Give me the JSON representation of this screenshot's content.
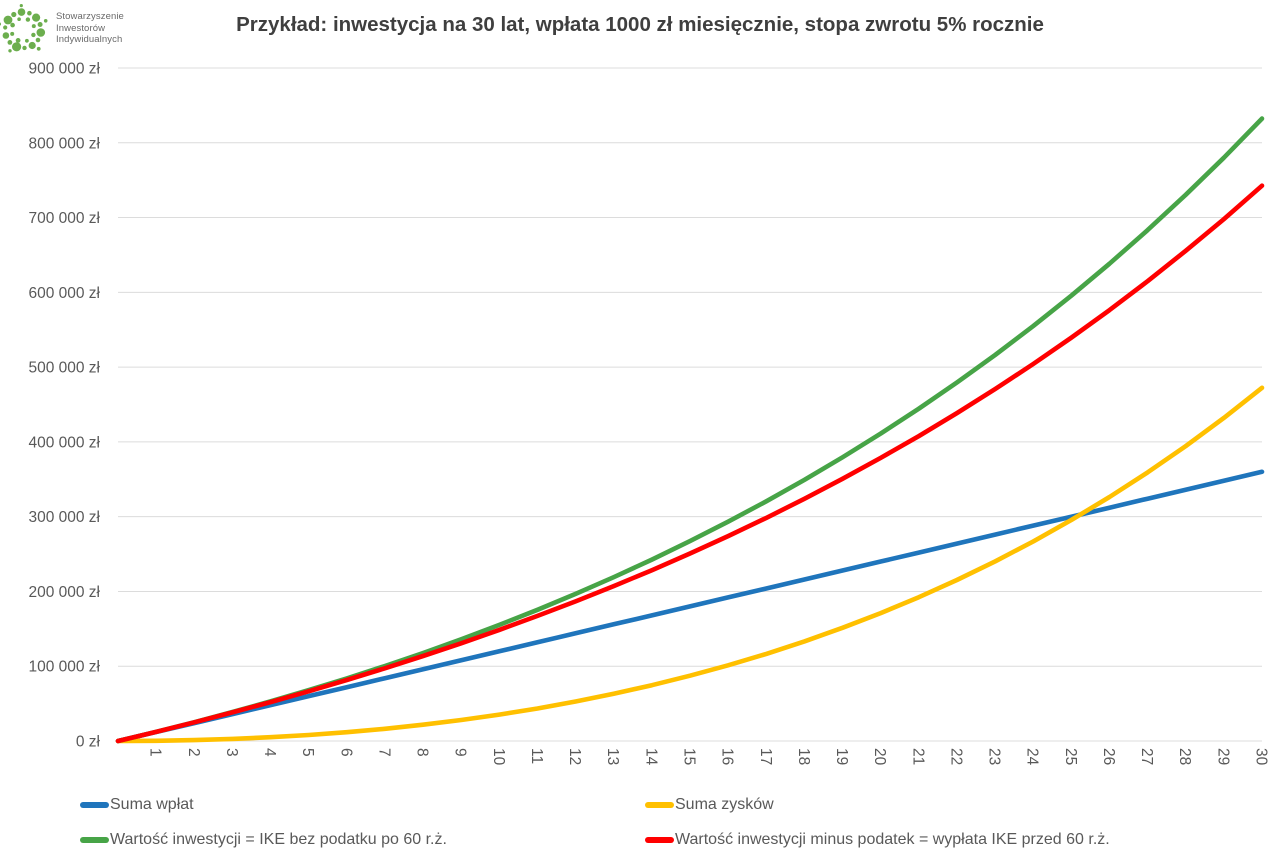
{
  "header": {
    "logo_lines": [
      "Stowarzyszenie",
      "Inwestorów",
      "Indywidualnych"
    ],
    "logo_color": "#6cae4e",
    "title": "Przykład: inwestycja na 30 lat, wpłata 1000 zł miesięcznie, stopa zwrotu 5% rocznie"
  },
  "chart_data": {
    "type": "line",
    "title": "Przykład: inwestycja na 30 lat, wpłata 1000 zł miesięcznie, stopa zwrotu 5% rocznie",
    "xlabel": "",
    "ylabel": "",
    "x_values": [
      0,
      1,
      2,
      3,
      4,
      5,
      6,
      7,
      8,
      9,
      10,
      11,
      12,
      13,
      14,
      15,
      16,
      17,
      18,
      19,
      20,
      21,
      22,
      23,
      24,
      25,
      26,
      27,
      28,
      29,
      30
    ],
    "x_tick_labels": [
      "1",
      "2",
      "3",
      "4",
      "5",
      "6",
      "7",
      "8",
      "9",
      "10",
      "11",
      "12",
      "13",
      "14",
      "15",
      "16",
      "17",
      "18",
      "19",
      "20",
      "21",
      "22",
      "23",
      "24",
      "25",
      "26",
      "27",
      "28",
      "29",
      "30"
    ],
    "ylim": [
      0,
      900000
    ],
    "y_ticks": [
      {
        "value": 0,
        "label": "0 zł"
      },
      {
        "value": 100000,
        "label": "100 000 zł"
      },
      {
        "value": 200000,
        "label": "200 000 zł"
      },
      {
        "value": 300000,
        "label": "300 000 zł"
      },
      {
        "value": 400000,
        "label": "400 000 zł"
      },
      {
        "value": 500000,
        "label": "500 000 zł"
      },
      {
        "value": 600000,
        "label": "600 000 zł"
      },
      {
        "value": 700000,
        "label": "700 000 zł"
      },
      {
        "value": 800000,
        "label": "800 000 zł"
      },
      {
        "value": 900000,
        "label": "900 000 zł"
      }
    ],
    "grid": "horizontal",
    "gridline_color": "#dcdcdc",
    "tick_label_color": "#595959",
    "legend_position": "bottom-two-columns",
    "series": [
      {
        "name": "Suma wpłat",
        "color": "#1f75bc",
        "values": [
          0,
          12000,
          24000,
          36000,
          48000,
          60000,
          72000,
          84000,
          96000,
          108000,
          120000,
          132000,
          144000,
          156000,
          168000,
          180000,
          192000,
          204000,
          216000,
          228000,
          240000,
          252000,
          264000,
          276000,
          288000,
          300000,
          312000,
          324000,
          336000,
          348000,
          360000
        ]
      },
      {
        "name": "Suma zysków",
        "color": "#ffc000",
        "values": [
          0,
          279,
          1186,
          2753,
          5015,
          8006,
          11764,
          16329,
          21740,
          28043,
          35282,
          43506,
          52764,
          63109,
          74598,
          87289,
          101243,
          116525,
          133203,
          151348,
          171035,
          192343,
          215356,
          240160,
          266847,
          295514,
          326261,
          359195,
          394428,
          432077,
          472267
        ]
      },
      {
        "name": "Wartość inwestycji = IKE bez podatku po 60 r.ż.",
        "color": "#47a447",
        "values": [
          0,
          12279,
          25186,
          38753,
          53015,
          68006,
          83764,
          100329,
          117740,
          136043,
          155282,
          175506,
          196764,
          219109,
          242598,
          267289,
          293243,
          320525,
          349203,
          379348,
          411035,
          444343,
          479356,
          516160,
          554847,
          595514,
          638261,
          683195,
          730428,
          780077,
          832267
        ]
      },
      {
        "name": "Wartość inwestycji minus podatek = wypłata IKE przed 60 r.ż.",
        "color": "#ff0000",
        "values": [
          0,
          12226,
          24961,
          38230,
          52062,
          66485,
          81529,
          97226,
          113609,
          130715,
          148578,
          167240,
          186739,
          207118,
          228424,
          250704,
          274007,
          298385,
          323894,
          350592,
          378538,
          407798,
          438438,
          470530,
          504146,
          539366,
          576271,
          614948,
          655487,
          697982,
          742536
        ]
      }
    ]
  }
}
